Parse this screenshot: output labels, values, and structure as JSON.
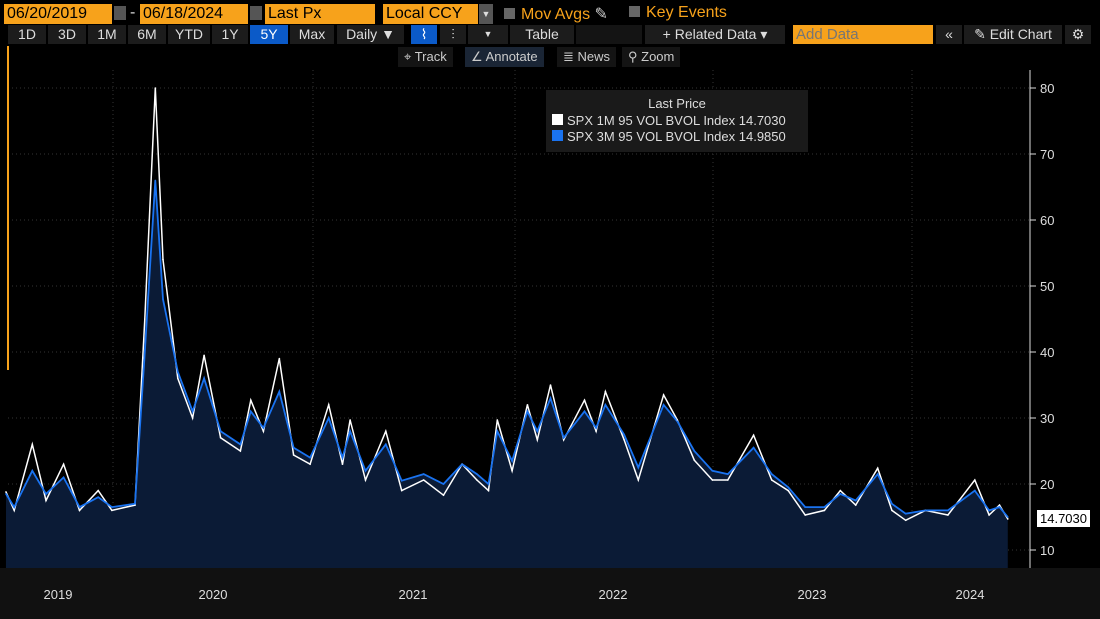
{
  "toolbar": {
    "start_date": "06/20/2019",
    "end_date": "06/18/2024",
    "field": "Last Px",
    "currency": "Local CCY",
    "mov_avgs": "Mov Avgs",
    "key_events": "Key Events",
    "periods": [
      "1D",
      "3D",
      "1M",
      "6M",
      "YTD",
      "1Y",
      "5Y",
      "Max"
    ],
    "selected_period": "5Y",
    "frequency": "Daily ▼",
    "table": "Table",
    "related_data": "+ Related Data ▾",
    "add_data_placeholder": "Add Data",
    "edit_chart": "Edit Chart"
  },
  "tools": {
    "track": "Track",
    "annotate": "Annotate",
    "news": "News",
    "zoom": "Zoom"
  },
  "chart_data": {
    "type": "area",
    "legend_title": "Last Price",
    "legend_position": "top-center",
    "ylim": [
      7,
      85
    ],
    "yticks": [
      10,
      20,
      30,
      40,
      50,
      60,
      70,
      80
    ],
    "xticks": [
      "2019",
      "2020",
      "2021",
      "2022",
      "2023",
      "2024"
    ],
    "xlim": [
      "2019-06-20",
      "2024-06-18"
    ],
    "grid": true,
    "last_value_label": "14.7030",
    "series": [
      {
        "name": "SPX 1M 95 VOL BVOL Index",
        "last": "14.7030",
        "color": "#ffffff"
      },
      {
        "name": "SPX 3M 95 VOL BVOL Index",
        "last": "14.9850",
        "color": "#1a73f0"
      }
    ],
    "dates": [
      "2019-06-20",
      "2019-07-05",
      "2019-08-07",
      "2019-09-01",
      "2019-10-03",
      "2019-11-01",
      "2019-12-05",
      "2019-12-30",
      "2020-02-10",
      "2020-02-28",
      "2020-03-18",
      "2020-04-01",
      "2020-04-28",
      "2020-05-25",
      "2020-06-15",
      "2020-07-15",
      "2020-08-20",
      "2020-09-08",
      "2020-10-01",
      "2020-10-30",
      "2020-11-25",
      "2020-12-25",
      "2021-01-28",
      "2021-02-22",
      "2021-03-08",
      "2021-04-05",
      "2021-05-12",
      "2021-06-10",
      "2021-07-20",
      "2021-08-25",
      "2021-09-28",
      "2021-10-25",
      "2021-11-15",
      "2021-12-01",
      "2021-12-28",
      "2022-01-25",
      "2022-02-12",
      "2022-03-08",
      "2022-04-01",
      "2022-05-09",
      "2022-05-30",
      "2022-06-16",
      "2022-07-20",
      "2022-08-15",
      "2022-09-30",
      "2022-10-25",
      "2022-11-25",
      "2022-12-28",
      "2023-01-25",
      "2023-03-13",
      "2023-04-15",
      "2023-05-15",
      "2023-06-15",
      "2023-07-20",
      "2023-08-18",
      "2023-09-15",
      "2023-10-25",
      "2023-11-20",
      "2023-12-15",
      "2024-01-20",
      "2024-03-01",
      "2024-04-19",
      "2024-05-15",
      "2024-06-03",
      "2024-06-18"
    ],
    "values_1m": [
      18.8,
      16,
      26,
      17.5,
      23,
      16,
      19,
      16,
      16.8,
      45,
      80,
      54,
      36,
      30,
      39.5,
      27,
      25,
      32.7,
      28,
      39,
      24.4,
      23,
      32,
      23,
      29.7,
      20.6,
      28,
      19,
      20.6,
      18.3,
      23,
      20.6,
      19,
      29.7,
      22,
      32,
      26.7,
      35,
      26.7,
      32.7,
      28,
      34,
      26.7,
      20.6,
      33.5,
      29.7,
      23.6,
      20.6,
      20.6,
      27.4,
      20.6,
      19,
      15.3,
      16,
      19,
      16.8,
      22.4,
      16,
      14.5,
      16,
      15.3,
      20.6,
      15.3,
      16.8,
      14.703
    ],
    "values_3m": [
      18.5,
      16.5,
      22,
      18.5,
      21,
      16.5,
      18,
      16.5,
      17,
      40,
      66,
      48,
      37,
      31,
      36,
      28,
      26,
      31,
      28.5,
      34,
      25.5,
      24,
      30,
      24,
      28,
      22,
      26,
      20.5,
      21.5,
      20,
      23,
      21.5,
      20,
      28,
      23.5,
      31,
      28,
      33,
      27,
      31,
      28.5,
      32,
      27.5,
      22.5,
      32,
      29.5,
      25,
      22,
      21.5,
      25.5,
      21.5,
      19.5,
      16.5,
      16.5,
      18.5,
      17.5,
      21.5,
      17,
      15.5,
      16,
      16,
      19,
      16,
      16.5,
      14.985
    ]
  }
}
